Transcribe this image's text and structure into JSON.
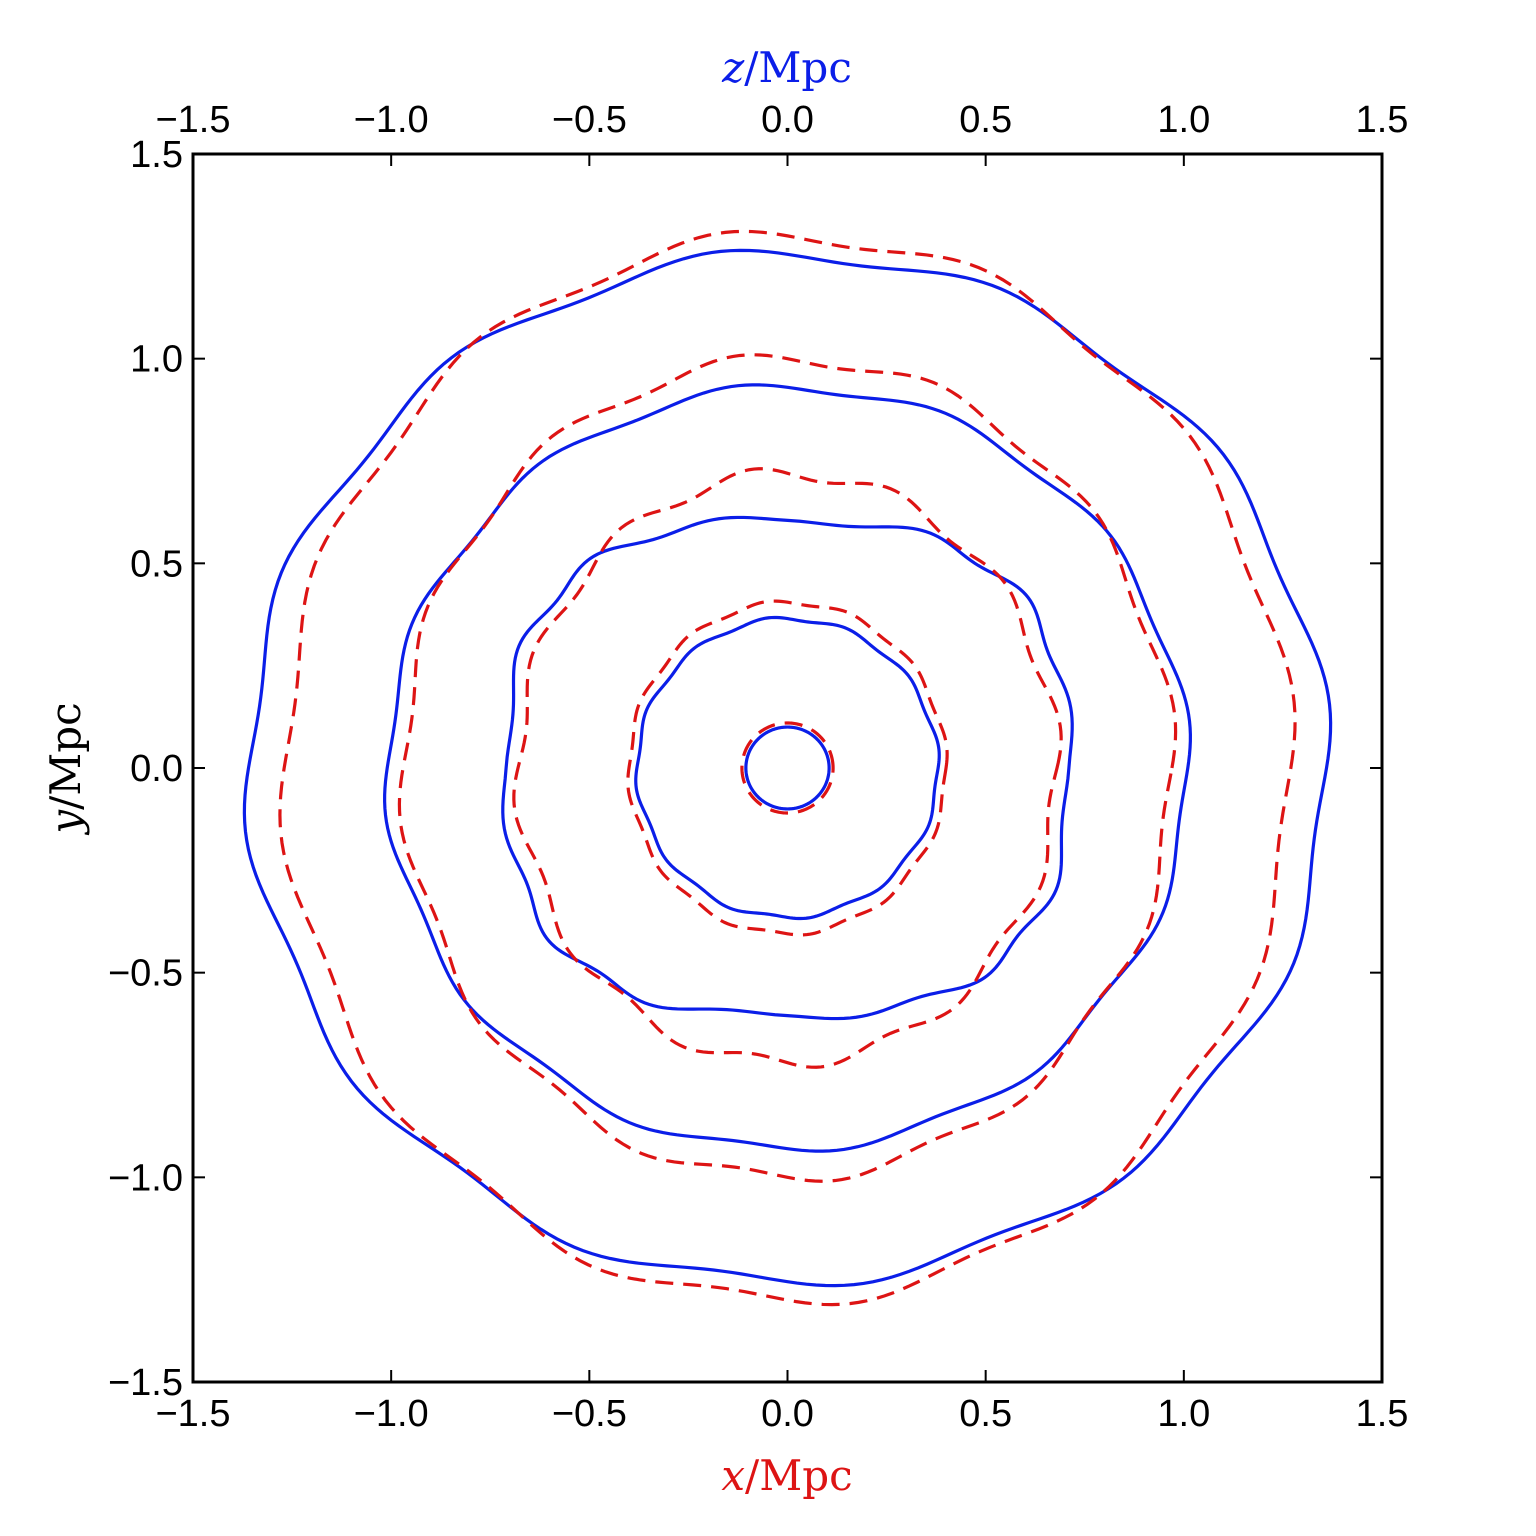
{
  "colors": {
    "solid": "#0b1ee8",
    "dashed": "#dd1414",
    "frame": "#000000"
  },
  "axes": {
    "x": {
      "var": "x",
      "unit": "/Mpc",
      "color": "#dd1414",
      "lim": [
        -1.5,
        1.5
      ],
      "ticks": [
        -1.5,
        -1.0,
        -0.5,
        0.0,
        0.5,
        1.0,
        1.5
      ],
      "tick_labels": [
        "−1.5",
        "−1.0",
        "−0.5",
        "0.0",
        "0.5",
        "1.0",
        "1.5"
      ]
    },
    "z": {
      "var": "z",
      "unit": "/Mpc",
      "color": "#0b1ee8",
      "lim": [
        -1.5,
        1.5
      ],
      "ticks": [
        -1.5,
        -1.0,
        -0.5,
        0.0,
        0.5,
        1.0,
        1.5
      ],
      "tick_labels": [
        "−1.5",
        "−1.0",
        "−0.5",
        "0.0",
        "0.5",
        "1.0",
        "1.5"
      ]
    },
    "y": {
      "var": "y",
      "unit": "/Mpc",
      "color": "#000000",
      "lim": [
        -1.5,
        1.5
      ],
      "ticks": [
        -1.5,
        -1.0,
        -0.5,
        0.0,
        0.5,
        1.0,
        1.5
      ],
      "tick_labels": [
        "−1.5",
        "−1.0",
        "−0.5",
        "0.0",
        "0.5",
        "1.0",
        "1.5"
      ]
    }
  },
  "chart_data": {
    "type": "line",
    "grid": false,
    "xlim": [
      -1.5,
      1.5
    ],
    "ylim": [
      -1.5,
      1.5
    ],
    "series": [
      {
        "style": "solid",
        "color": "#0b1ee8",
        "contours": [
          {
            "r_x": 0.105,
            "r_y": 0.1,
            "wobble": 0.0
          },
          {
            "r_x": 0.38,
            "r_y": 0.365,
            "wobble": 0.005
          },
          {
            "r_x": 0.71,
            "r_y": 0.605,
            "wobble": 0.012,
            "shape": "rounded-square"
          },
          {
            "r_x": 1.01,
            "r_y": 0.93,
            "wobble": 0.012
          },
          {
            "r_x": 1.36,
            "r_y": 1.255,
            "wobble": 0.018
          }
        ]
      },
      {
        "style": "dashed",
        "color": "#dd1414",
        "contours": [
          {
            "r_x": 0.115,
            "r_y": 0.11,
            "wobble": 0.0
          },
          {
            "r_x": 0.4,
            "r_y": 0.405,
            "wobble": 0.005
          },
          {
            "r_x": 0.68,
            "r_y": 0.72,
            "wobble": 0.015
          },
          {
            "r_x": 0.97,
            "r_y": 1.0,
            "wobble": 0.015
          },
          {
            "r_x": 1.27,
            "r_y": 1.3,
            "wobble": 0.018
          }
        ]
      }
    ]
  }
}
